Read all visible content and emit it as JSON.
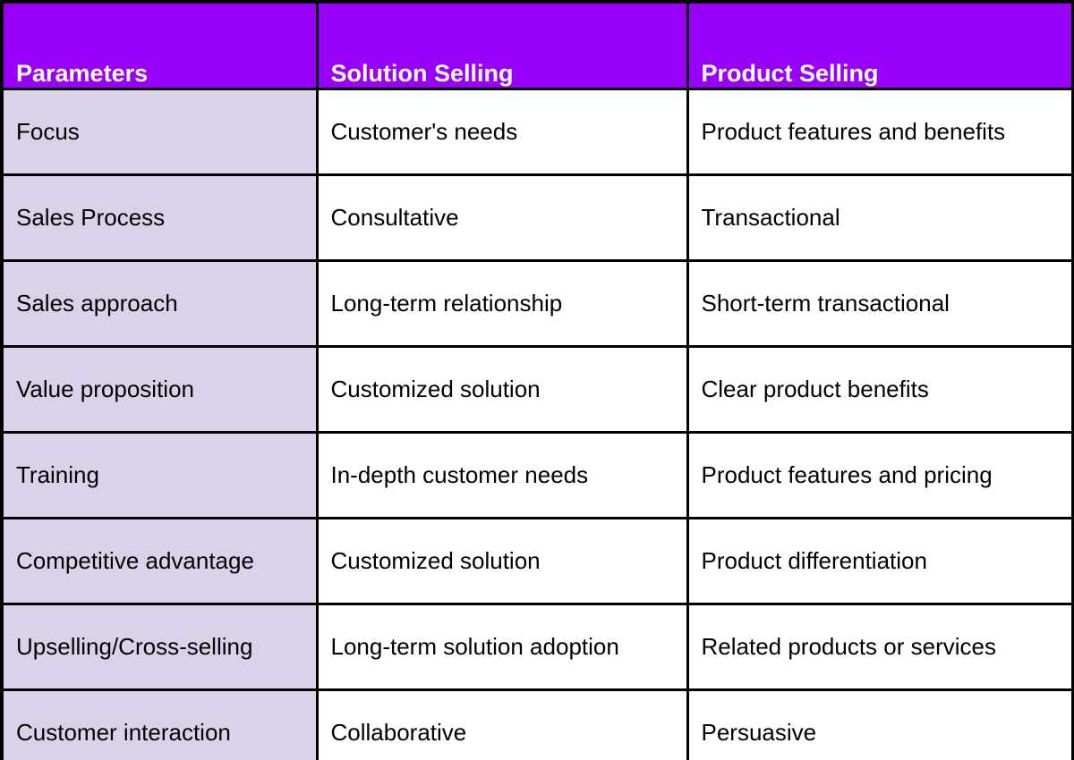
{
  "table": {
    "columns": [
      {
        "label": "Parameters"
      },
      {
        "label": "Solution Selling"
      },
      {
        "label": "Product Selling"
      }
    ],
    "rows": [
      {
        "parameter": "Focus",
        "solution_selling": "Customer's needs",
        "product_selling": "Product features and benefits"
      },
      {
        "parameter": "Sales Process",
        "solution_selling": "Consultative",
        "product_selling": "Transactional"
      },
      {
        "parameter": "Sales approach",
        "solution_selling": "Long-term relationship",
        "product_selling": "Short-term transactional"
      },
      {
        "parameter": "Value proposition",
        "solution_selling": "Customized solution",
        "product_selling": "Clear product benefits"
      },
      {
        "parameter": "Training",
        "solution_selling": "In-depth customer needs",
        "product_selling": "Product features and pricing"
      },
      {
        "parameter": "Competitive advantage",
        "solution_selling": "Customized solution",
        "product_selling": "Product differentiation"
      },
      {
        "parameter": "Upselling/Cross-selling",
        "solution_selling": "Long-term solution adoption",
        "product_selling": "Related products or services"
      },
      {
        "parameter": "Customer interaction",
        "solution_selling": "Collaborative",
        "product_selling": "Persuasive"
      }
    ]
  },
  "colors": {
    "header_bg": "#9900FA",
    "header_text": "#FFFFFF",
    "param_col_bg": "#D9D2E9",
    "cell_bg": "#FFFFFF",
    "body_text": "#000000",
    "border": "#000000"
  }
}
